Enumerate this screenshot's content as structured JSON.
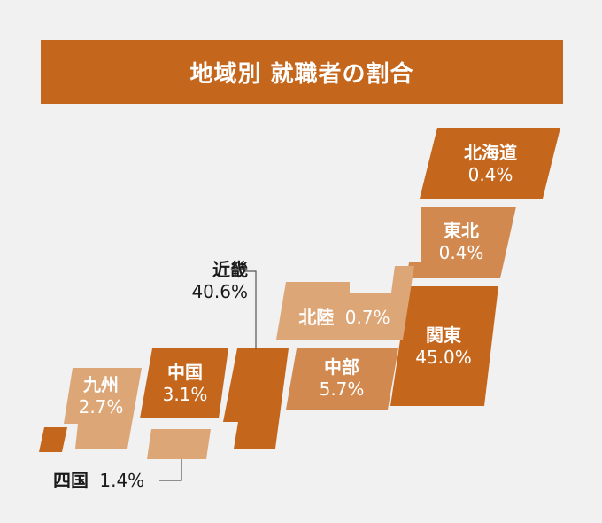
{
  "title": "地域別 就職者の割合",
  "colors": {
    "dark": "#c5661d",
    "mid": "#d1894f",
    "light": "#dca676",
    "background": "#f1f1f1",
    "leader": "#555555"
  },
  "chart_data": {
    "type": "map",
    "title": "地域別 就職者の割合",
    "unit": "%",
    "regions": [
      {
        "name": "北海道",
        "value": 0.4,
        "label": "0.4%"
      },
      {
        "name": "東北",
        "value": 0.4,
        "label": "0.4%"
      },
      {
        "name": "関東",
        "value": 45.0,
        "label": "45.0%"
      },
      {
        "name": "北陸",
        "value": 0.7,
        "label": "0.7%"
      },
      {
        "name": "中部",
        "value": 5.7,
        "label": "5.7%"
      },
      {
        "name": "近畿",
        "value": 40.6,
        "label": "40.6%"
      },
      {
        "name": "中国",
        "value": 3.1,
        "label": "3.1%"
      },
      {
        "name": "四国",
        "value": 1.4,
        "label": "1.4%"
      },
      {
        "name": "九州",
        "value": 2.7,
        "label": "2.7%"
      }
    ]
  }
}
